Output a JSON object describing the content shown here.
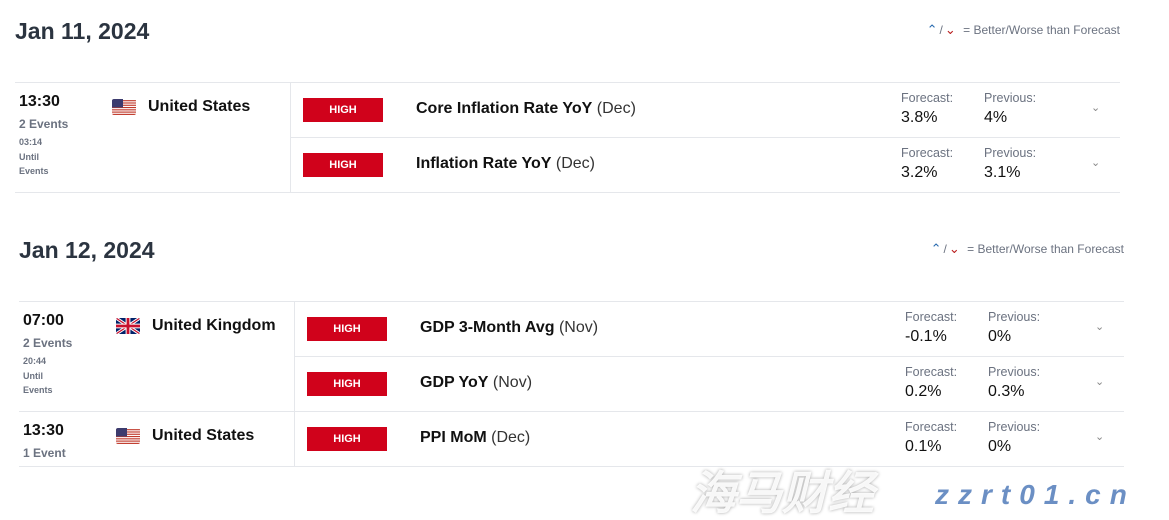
{
  "legend": {
    "better_icon": "arrow-up-dot-icon",
    "worse_icon": "arrow-down-dot-icon",
    "sep": "/",
    "text": "= Better/Worse than Forecast"
  },
  "labels": {
    "forecast": "Forecast:",
    "previous": "Previous:"
  },
  "importance_color": "#d0021b",
  "days": [
    {
      "date": "Jan 11, 2024",
      "groups": [
        {
          "time": "13:30",
          "count": "2 Events",
          "until_time": "03:14",
          "until_1": "Until",
          "until_2": "Events",
          "country": "United States",
          "flag": "us",
          "events": [
            {
              "importance": "HIGH",
              "name": "Core Inflation Rate YoY",
              "period": "(Dec)",
              "forecast": "3.8%",
              "previous": "4%"
            },
            {
              "importance": "HIGH",
              "name": "Inflation Rate YoY",
              "period": "(Dec)",
              "forecast": "3.2%",
              "previous": "3.1%"
            }
          ]
        }
      ]
    },
    {
      "date": "Jan 12, 2024",
      "groups": [
        {
          "time": "07:00",
          "count": "2 Events",
          "until_time": "20:44",
          "until_1": "Until",
          "until_2": "Events",
          "country": "United Kingdom",
          "flag": "uk",
          "events": [
            {
              "importance": "HIGH",
              "name": "GDP 3-Month Avg",
              "period": "(Nov)",
              "forecast": "-0.1%",
              "previous": "0%"
            },
            {
              "importance": "HIGH",
              "name": "GDP YoY",
              "period": "(Nov)",
              "forecast": "0.2%",
              "previous": "0.3%"
            }
          ]
        },
        {
          "time": "13:30",
          "count": "1 Event",
          "country": "United States",
          "flag": "us",
          "events": [
            {
              "importance": "HIGH",
              "name": "PPI MoM",
              "period": "(Dec)",
              "forecast": "0.1%",
              "previous": "0%"
            }
          ]
        }
      ]
    }
  ],
  "watermark": {
    "cn": "海马财经",
    "url": "zzrt01.cn"
  }
}
